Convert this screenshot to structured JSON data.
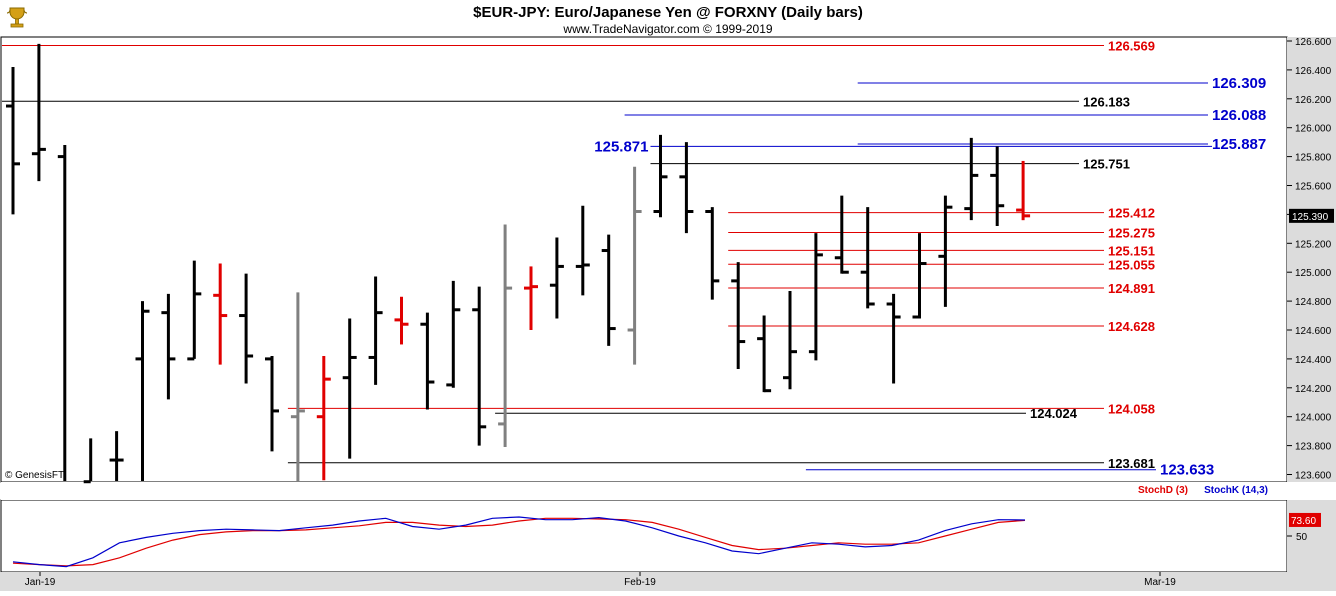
{
  "header": {
    "title": "$EUR-JPY:  Euro/Japanese Yen @ FORXNY  (Daily bars)",
    "subtitle": "www.TradeNavigator.com © 1999-2019",
    "logo_icon": "trophy-icon"
  },
  "watermark": "© GenesisFT",
  "colors": {
    "up_bar": "#000000",
    "down_bar": "#e00000",
    "neutral_bar": "#808080",
    "red_line": "#e00000",
    "blue_line": "#0000cc",
    "black_line": "#000000",
    "stoch_d": "#e00000",
    "stoch_k": "#0000cc",
    "panel_bg": "#dcdcdc"
  },
  "chart_data": {
    "type": "ohlc",
    "title": "$EUR-JPY:  Euro/Japanese Yen @ FORXNY  (Daily bars)",
    "ylim": [
      123.5,
      126.65
    ],
    "y_ticks": [
      "126.600",
      "126.400",
      "126.200",
      "126.000",
      "125.800",
      "125.600",
      "125.400",
      "125.200",
      "125.000",
      "124.800",
      "124.600",
      "124.400",
      "124.200",
      "124.000",
      "123.800",
      "123.600"
    ],
    "x_ticks": [
      "Jan-19",
      "Feb-19",
      "Mar-19"
    ],
    "last_price": "125.390",
    "bars": [
      {
        "o": 126.15,
        "h": 126.42,
        "l": 125.4,
        "c": 125.75,
        "color": "up"
      },
      {
        "o": 125.82,
        "h": 126.58,
        "l": 125.63,
        "c": 125.85,
        "color": "up"
      },
      {
        "o": 125.8,
        "h": 125.88,
        "l": 123.4,
        "c": 123.4,
        "color": "up"
      },
      {
        "o": 123.55,
        "h": 123.85,
        "l": 123.4,
        "c": 123.5,
        "color": "up"
      },
      {
        "o": 123.7,
        "h": 123.9,
        "l": 123.4,
        "c": 123.7,
        "color": "up"
      },
      {
        "o": 124.4,
        "h": 124.8,
        "l": 123.52,
        "c": 124.73,
        "color": "up"
      },
      {
        "o": 124.72,
        "h": 124.85,
        "l": 124.12,
        "c": 124.4,
        "color": "up"
      },
      {
        "o": 124.4,
        "h": 125.08,
        "l": 124.4,
        "c": 124.85,
        "color": "up"
      },
      {
        "o": 124.84,
        "h": 125.06,
        "l": 124.36,
        "c": 124.7,
        "color": "down"
      },
      {
        "o": 124.7,
        "h": 124.99,
        "l": 124.23,
        "c": 124.42,
        "color": "up"
      },
      {
        "o": 124.4,
        "h": 124.42,
        "l": 123.76,
        "c": 124.04,
        "color": "up"
      },
      {
        "o": 124.0,
        "h": 124.86,
        "l": 123.4,
        "c": 124.04,
        "color": "neutral"
      },
      {
        "o": 124.0,
        "h": 124.42,
        "l": 123.56,
        "c": 124.26,
        "color": "down"
      },
      {
        "o": 124.27,
        "h": 124.68,
        "l": 123.71,
        "c": 124.41,
        "color": "up"
      },
      {
        "o": 124.41,
        "h": 124.97,
        "l": 124.22,
        "c": 124.72,
        "color": "up"
      },
      {
        "o": 124.67,
        "h": 124.83,
        "l": 124.5,
        "c": 124.64,
        "color": "down"
      },
      {
        "o": 124.64,
        "h": 124.72,
        "l": 124.05,
        "c": 124.24,
        "color": "up"
      },
      {
        "o": 124.22,
        "h": 124.94,
        "l": 124.2,
        "c": 124.74,
        "color": "up"
      },
      {
        "o": 124.74,
        "h": 124.9,
        "l": 123.8,
        "c": 123.93,
        "color": "up"
      },
      {
        "o": 123.95,
        "h": 125.33,
        "l": 123.79,
        "c": 124.89,
        "color": "neutral"
      },
      {
        "o": 124.89,
        "h": 125.04,
        "l": 124.6,
        "c": 124.9,
        "color": "down"
      },
      {
        "o": 124.91,
        "h": 125.24,
        "l": 124.68,
        "c": 125.04,
        "color": "up"
      },
      {
        "o": 125.04,
        "h": 125.46,
        "l": 124.84,
        "c": 125.05,
        "color": "up"
      },
      {
        "o": 125.15,
        "h": 125.26,
        "l": 124.49,
        "c": 124.61,
        "color": "up"
      },
      {
        "o": 124.6,
        "h": 125.73,
        "l": 124.36,
        "c": 125.42,
        "color": "neutral"
      },
      {
        "o": 125.42,
        "h": 125.95,
        "l": 125.38,
        "c": 125.66,
        "color": "up"
      },
      {
        "o": 125.66,
        "h": 125.9,
        "l": 125.27,
        "c": 125.42,
        "color": "up"
      },
      {
        "o": 125.42,
        "h": 125.45,
        "l": 124.81,
        "c": 124.94,
        "color": "up"
      },
      {
        "o": 124.94,
        "h": 125.07,
        "l": 124.33,
        "c": 124.52,
        "color": "up"
      },
      {
        "o": 124.54,
        "h": 124.7,
        "l": 124.17,
        "c": 124.18,
        "color": "up"
      },
      {
        "o": 124.27,
        "h": 124.87,
        "l": 124.19,
        "c": 124.45,
        "color": "up"
      },
      {
        "o": 124.45,
        "h": 125.27,
        "l": 124.39,
        "c": 125.12,
        "color": "up"
      },
      {
        "o": 125.1,
        "h": 125.53,
        "l": 124.99,
        "c": 125.0,
        "color": "up"
      },
      {
        "o": 125.0,
        "h": 125.45,
        "l": 124.75,
        "c": 124.78,
        "color": "up"
      },
      {
        "o": 124.78,
        "h": 124.85,
        "l": 124.23,
        "c": 124.69,
        "color": "up"
      },
      {
        "o": 124.69,
        "h": 125.27,
        "l": 124.68,
        "c": 125.06,
        "color": "up"
      },
      {
        "o": 125.11,
        "h": 125.53,
        "l": 124.76,
        "c": 125.45,
        "color": "up"
      },
      {
        "o": 125.44,
        "h": 125.93,
        "l": 125.36,
        "c": 125.67,
        "color": "up"
      },
      {
        "o": 125.67,
        "h": 125.87,
        "l": 125.32,
        "c": 125.46,
        "color": "up"
      },
      {
        "o": 125.43,
        "h": 125.77,
        "l": 125.36,
        "c": 125.39,
        "color": "down"
      }
    ],
    "levels": [
      {
        "value": 126.569,
        "label": "126.569",
        "color": "red",
        "from_bar": 0
      },
      {
        "value": 126.309,
        "label": "126.309",
        "color": "blue",
        "from_bar": 33
      },
      {
        "value": 126.183,
        "label": "126.183",
        "color": "black",
        "from_bar": 0
      },
      {
        "value": 126.088,
        "label": "126.088",
        "color": "blue",
        "from_bar": 24
      },
      {
        "value": 125.887,
        "label": "125.887",
        "color": "blue",
        "from_bar": 33
      },
      {
        "value": 125.871,
        "label": "125.871",
        "color": "blue",
        "from_bar": 25,
        "label_side": "left"
      },
      {
        "value": 125.751,
        "label": "125.751",
        "color": "black",
        "from_bar": 25
      },
      {
        "value": 125.412,
        "label": "125.412",
        "color": "red",
        "from_bar": 28
      },
      {
        "value": 125.275,
        "label": "125.275",
        "color": "red",
        "from_bar": 28
      },
      {
        "value": 125.151,
        "label": "125.151",
        "color": "red",
        "from_bar": 28
      },
      {
        "value": 125.055,
        "label": "125.055",
        "color": "red",
        "from_bar": 28
      },
      {
        "value": 124.891,
        "label": "124.891",
        "color": "red",
        "from_bar": 28
      },
      {
        "value": 124.628,
        "label": "124.628",
        "color": "red",
        "from_bar": 28
      },
      {
        "value": 124.058,
        "label": "124.058",
        "color": "red",
        "from_bar": 11
      },
      {
        "value": 124.024,
        "label": "124.024",
        "color": "black",
        "from_bar": 19
      },
      {
        "value": 123.681,
        "label": "123.681",
        "color": "black",
        "from_bar": 11
      },
      {
        "value": 123.633,
        "label": "123.633",
        "color": "blue",
        "from_bar": 31
      }
    ],
    "stoch": {
      "legend_d": "StochD (3)",
      "legend_k": "StochK (14,3)",
      "last_value": "73.60",
      "y_tick": "50",
      "ylim": [
        0,
        100
      ],
      "k_values": [
        12,
        8,
        5,
        18,
        40,
        48,
        54,
        58,
        60,
        59,
        58,
        62,
        66,
        72,
        76,
        64,
        60,
        66,
        76,
        78,
        74,
        74,
        77,
        72,
        62,
        50,
        40,
        28,
        24,
        32,
        40,
        38,
        34,
        36,
        44,
        58,
        68,
        74,
        73.6
      ],
      "d_values": [
        10,
        8,
        6,
        8,
        18,
        32,
        44,
        52,
        56,
        58,
        58,
        59,
        62,
        65,
        70,
        70,
        66,
        64,
        66,
        72,
        76,
        76,
        75,
        74,
        70,
        60,
        48,
        36,
        30,
        32,
        36,
        40,
        38,
        38,
        40,
        50,
        60,
        70,
        73
      ]
    }
  }
}
